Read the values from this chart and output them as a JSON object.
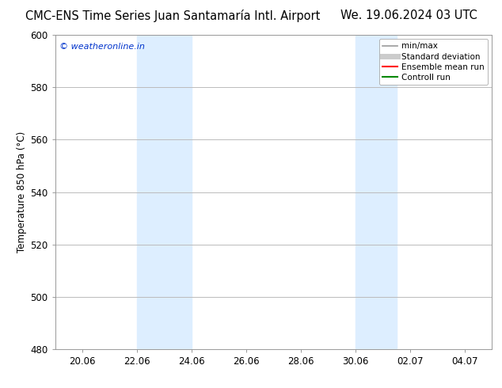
{
  "title_left": "CMC-ENS Time Series Juan Santamaría Intl. Airport",
  "title_right": "We. 19.06.2024 03 UTC",
  "ylabel": "Temperature 850 hPa (°C)",
  "watermark": "© weatheronline.in",
  "watermark_color": "#0033cc",
  "ylim": [
    480,
    600
  ],
  "yticks": [
    480,
    500,
    520,
    540,
    560,
    580,
    600
  ],
  "xtick_labels": [
    "20.06",
    "22.06",
    "24.06",
    "26.06",
    "28.06",
    "30.06",
    "02.07",
    "04.07"
  ],
  "xtick_positions": [
    1,
    3,
    5,
    7,
    9,
    11,
    13,
    15
  ],
  "xlim": [
    0,
    16
  ],
  "shaded_bands": [
    {
      "x_start": 3.0,
      "x_end": 5.0
    },
    {
      "x_start": 11.0,
      "x_end": 12.5
    }
  ],
  "shaded_color": "#ddeeff",
  "background_color": "#ffffff",
  "grid_color": "#bbbbbb",
  "legend_entries": [
    {
      "label": "min/max",
      "color": "#999999",
      "linewidth": 1.2,
      "linestyle": "-"
    },
    {
      "label": "Standard deviation",
      "color": "#cccccc",
      "linewidth": 5,
      "linestyle": "-"
    },
    {
      "label": "Ensemble mean run",
      "color": "#ff0000",
      "linewidth": 1.5,
      "linestyle": "-"
    },
    {
      "label": "Controll run",
      "color": "#008800",
      "linewidth": 1.5,
      "linestyle": "-"
    }
  ],
  "border_color": "#999999",
  "title_fontsize": 10.5,
  "tick_fontsize": 8.5,
  "ylabel_fontsize": 8.5,
  "watermark_fontsize": 8,
  "legend_fontsize": 7.5
}
